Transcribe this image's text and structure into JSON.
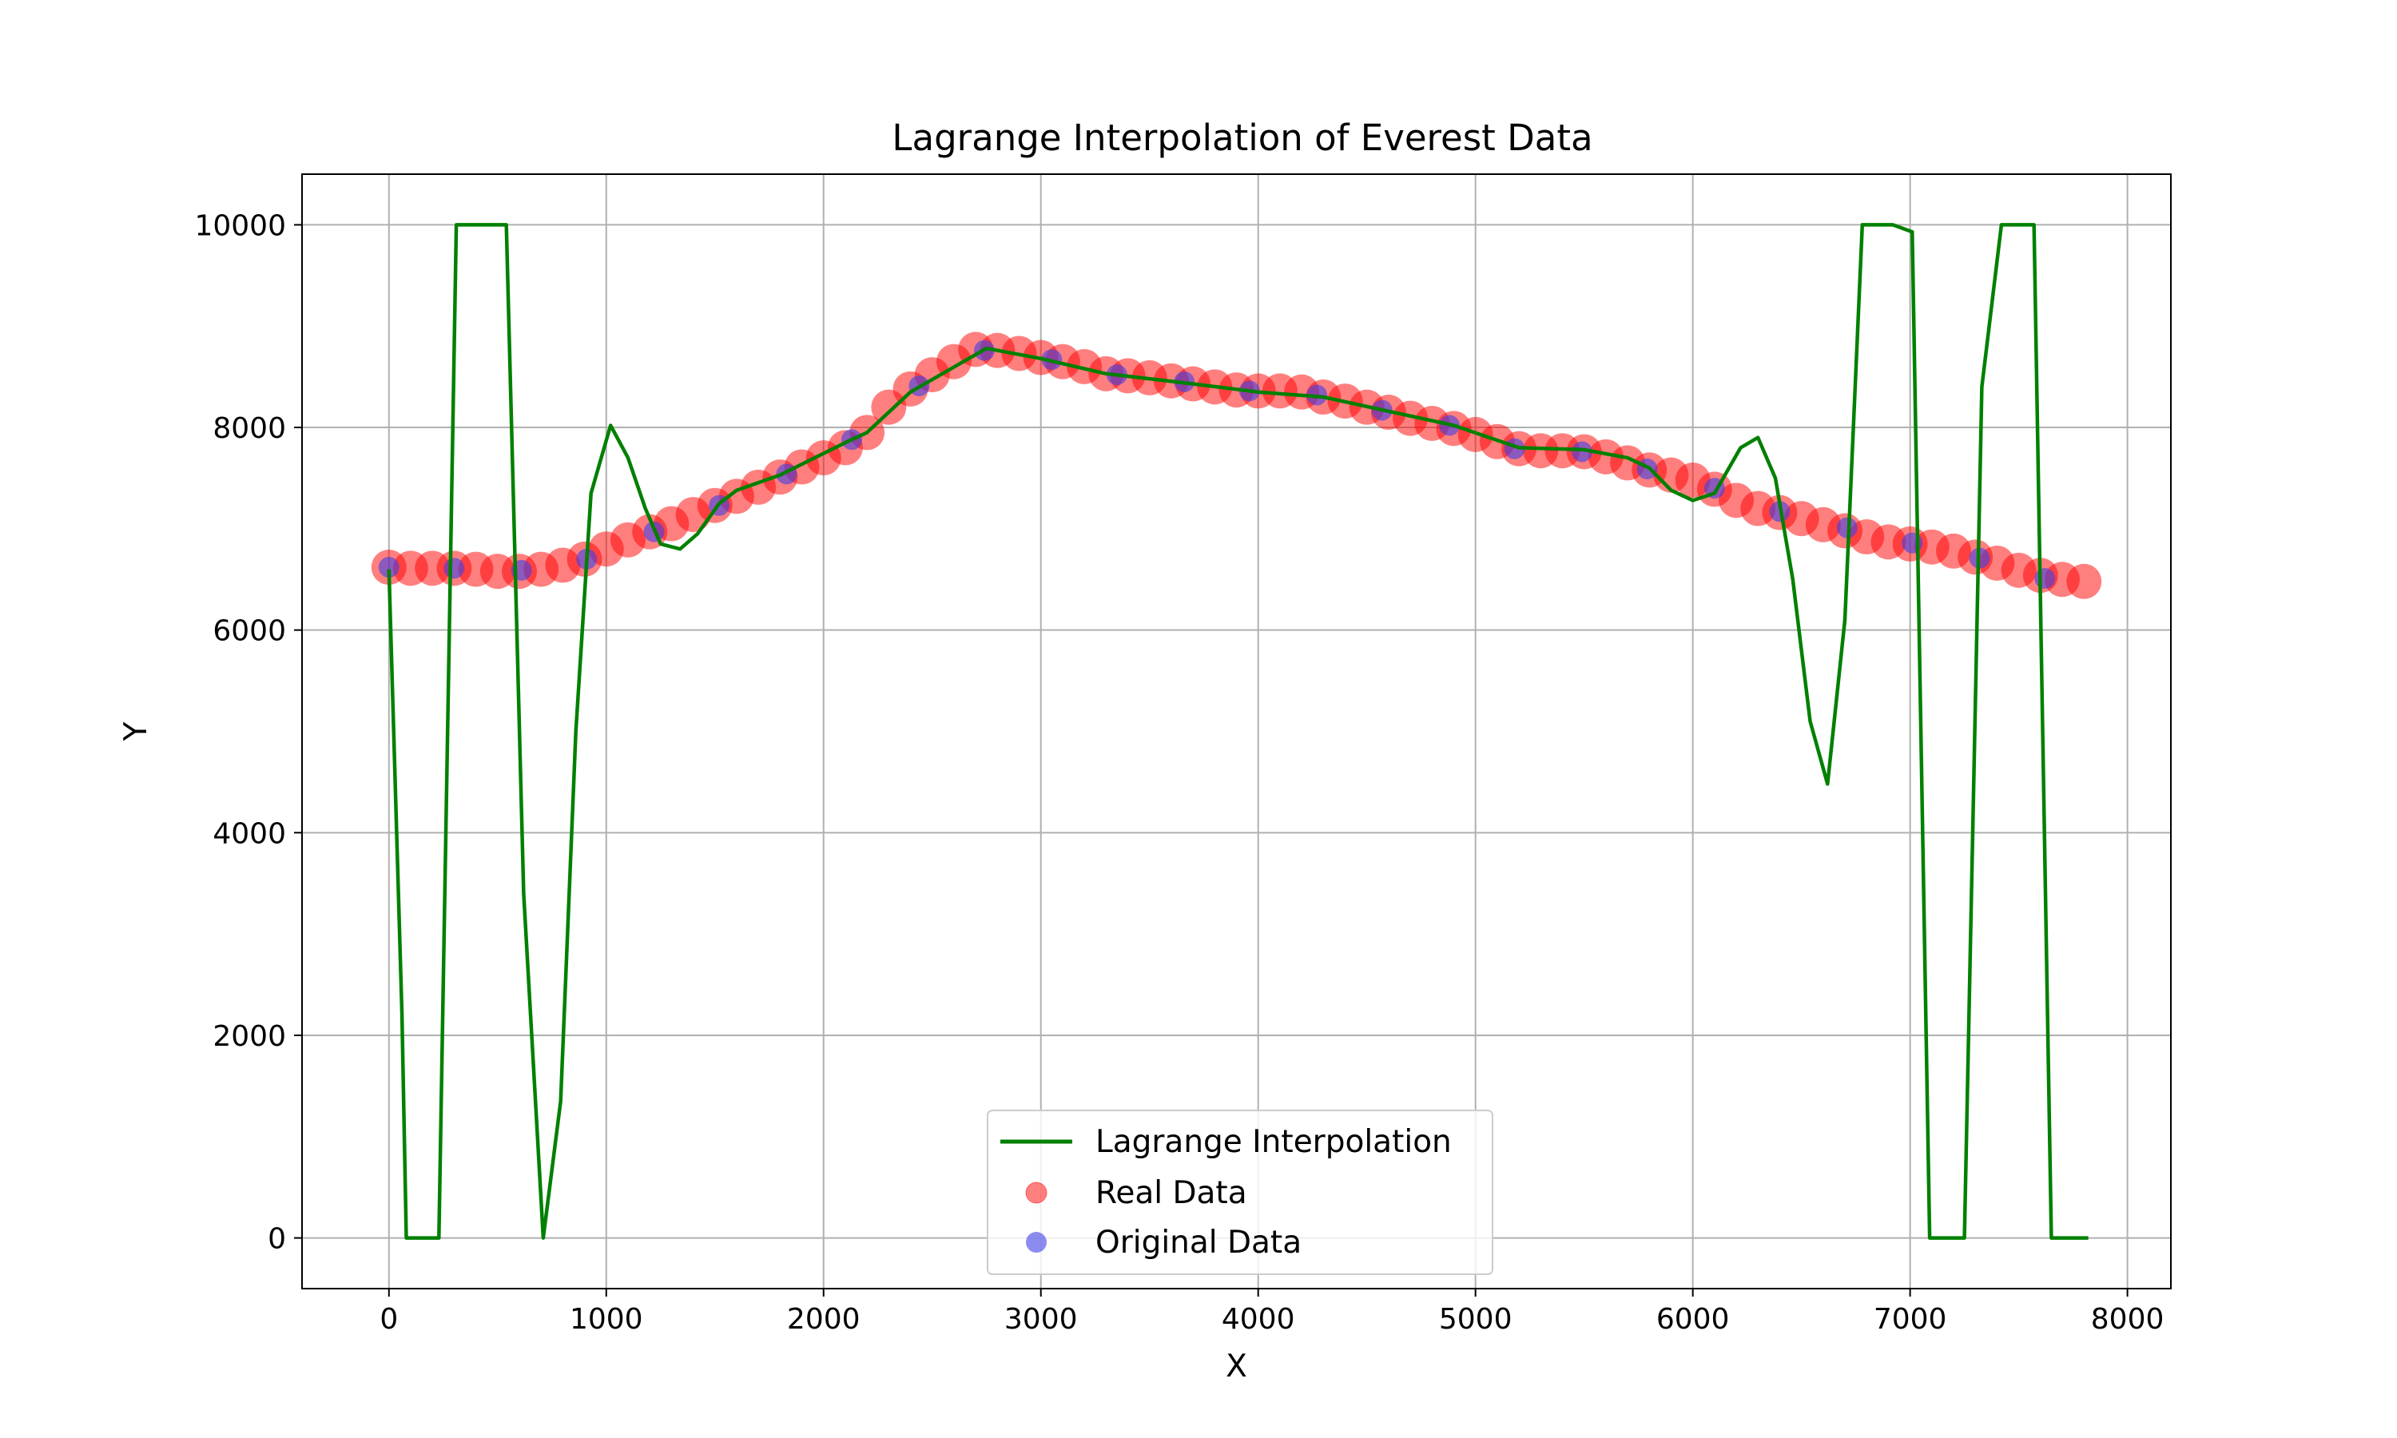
{
  "chart_data": {
    "type": "line",
    "title": "Lagrange Interpolation of Everest Data",
    "xlabel": "X",
    "ylabel": "Y",
    "xlim": [
      -400,
      8200
    ],
    "ylim": [
      -500,
      10500
    ],
    "xticks": [
      0,
      1000,
      2000,
      3000,
      4000,
      5000,
      6000,
      7000,
      8000
    ],
    "yticks": [
      0,
      2000,
      4000,
      6000,
      8000,
      10000
    ],
    "grid": true,
    "legend_position": "lower center",
    "colors": {
      "lagrange": "#008000",
      "real": "#ff0000",
      "original": "#3f3fe6"
    },
    "series": [
      {
        "name": "Lagrange Interpolation",
        "kind": "line",
        "points": [
          [
            0,
            6600
          ],
          [
            60,
            2200
          ],
          [
            80,
            0
          ],
          [
            230,
            0
          ],
          [
            310,
            10000
          ],
          [
            540,
            10000
          ],
          [
            620,
            3400
          ],
          [
            710,
            0
          ],
          [
            790,
            1350
          ],
          [
            860,
            5000
          ],
          [
            930,
            7350
          ],
          [
            1020,
            8020
          ],
          [
            1100,
            7700
          ],
          [
            1180,
            7200
          ],
          [
            1250,
            6850
          ],
          [
            1340,
            6800
          ],
          [
            1420,
            6950
          ],
          [
            1520,
            7250
          ],
          [
            1600,
            7380
          ],
          [
            1800,
            7530
          ],
          [
            2100,
            7850
          ],
          [
            2200,
            7950
          ],
          [
            2400,
            8350
          ],
          [
            2750,
            8780
          ],
          [
            3000,
            8680
          ],
          [
            3300,
            8530
          ],
          [
            3700,
            8430
          ],
          [
            4000,
            8350
          ],
          [
            4300,
            8300
          ],
          [
            4600,
            8160
          ],
          [
            4900,
            8020
          ],
          [
            5200,
            7800
          ],
          [
            5500,
            7780
          ],
          [
            5700,
            7700
          ],
          [
            5800,
            7600
          ],
          [
            5900,
            7380
          ],
          [
            6000,
            7280
          ],
          [
            6100,
            7350
          ],
          [
            6220,
            7800
          ],
          [
            6300,
            7900
          ],
          [
            6380,
            7500
          ],
          [
            6460,
            6500
          ],
          [
            6540,
            5100
          ],
          [
            6620,
            4480
          ],
          [
            6700,
            6100
          ],
          [
            6780,
            10000
          ],
          [
            6920,
            10000
          ],
          [
            7010,
            9930
          ],
          [
            7090,
            0
          ],
          [
            7250,
            0
          ],
          [
            7330,
            8400
          ],
          [
            7420,
            10000
          ],
          [
            7570,
            10000
          ],
          [
            7650,
            0
          ],
          [
            7820,
            0
          ]
        ]
      },
      {
        "name": "Real Data",
        "kind": "scatter",
        "points": [
          [
            0,
            6620
          ],
          [
            100,
            6610
          ],
          [
            200,
            6610
          ],
          [
            300,
            6610
          ],
          [
            400,
            6600
          ],
          [
            500,
            6580
          ],
          [
            600,
            6580
          ],
          [
            700,
            6600
          ],
          [
            800,
            6640
          ],
          [
            900,
            6700
          ],
          [
            1000,
            6800
          ],
          [
            1100,
            6890
          ],
          [
            1200,
            6970
          ],
          [
            1300,
            7050
          ],
          [
            1400,
            7140
          ],
          [
            1500,
            7230
          ],
          [
            1600,
            7320
          ],
          [
            1700,
            7410
          ],
          [
            1800,
            7510
          ],
          [
            1900,
            7610
          ],
          [
            2000,
            7700
          ],
          [
            2100,
            7800
          ],
          [
            2200,
            7950
          ],
          [
            2300,
            8200
          ],
          [
            2400,
            8380
          ],
          [
            2500,
            8520
          ],
          [
            2600,
            8650
          ],
          [
            2700,
            8770
          ],
          [
            2800,
            8760
          ],
          [
            2900,
            8730
          ],
          [
            3000,
            8690
          ],
          [
            3100,
            8650
          ],
          [
            3200,
            8600
          ],
          [
            3300,
            8530
          ],
          [
            3400,
            8510
          ],
          [
            3500,
            8490
          ],
          [
            3600,
            8460
          ],
          [
            3700,
            8430
          ],
          [
            3800,
            8400
          ],
          [
            3900,
            8370
          ],
          [
            4000,
            8360
          ],
          [
            4100,
            8360
          ],
          [
            4200,
            8350
          ],
          [
            4300,
            8300
          ],
          [
            4400,
            8260
          ],
          [
            4500,
            8200
          ],
          [
            4600,
            8150
          ],
          [
            4700,
            8090
          ],
          [
            4800,
            8040
          ],
          [
            4900,
            7990
          ],
          [
            5000,
            7930
          ],
          [
            5100,
            7860
          ],
          [
            5200,
            7790
          ],
          [
            5300,
            7770
          ],
          [
            5400,
            7770
          ],
          [
            5500,
            7760
          ],
          [
            5600,
            7710
          ],
          [
            5700,
            7650
          ],
          [
            5800,
            7580
          ],
          [
            5900,
            7530
          ],
          [
            6000,
            7480
          ],
          [
            6100,
            7390
          ],
          [
            6200,
            7280
          ],
          [
            6300,
            7200
          ],
          [
            6400,
            7160
          ],
          [
            6500,
            7100
          ],
          [
            6600,
            7040
          ],
          [
            6700,
            6980
          ],
          [
            6800,
            6920
          ],
          [
            6900,
            6870
          ],
          [
            7000,
            6850
          ],
          [
            7100,
            6820
          ],
          [
            7200,
            6780
          ],
          [
            7300,
            6720
          ],
          [
            7400,
            6660
          ],
          [
            7500,
            6590
          ],
          [
            7600,
            6540
          ],
          [
            7700,
            6500
          ],
          [
            7800,
            6480
          ]
        ]
      },
      {
        "name": "Original Data",
        "kind": "scatter",
        "points": [
          [
            0,
            6620
          ],
          [
            300,
            6610
          ],
          [
            610,
            6590
          ],
          [
            910,
            6700
          ],
          [
            1220,
            6970
          ],
          [
            1520,
            7230
          ],
          [
            1830,
            7540
          ],
          [
            2130,
            7880
          ],
          [
            2440,
            8410
          ],
          [
            2740,
            8760
          ],
          [
            3050,
            8670
          ],
          [
            3350,
            8520
          ],
          [
            3660,
            8450
          ],
          [
            3960,
            8360
          ],
          [
            4270,
            8320
          ],
          [
            4570,
            8170
          ],
          [
            4880,
            8020
          ],
          [
            5180,
            7790
          ],
          [
            5490,
            7760
          ],
          [
            5790,
            7590
          ],
          [
            6100,
            7400
          ],
          [
            6400,
            7170
          ],
          [
            6710,
            7010
          ],
          [
            7010,
            6860
          ],
          [
            7320,
            6710
          ],
          [
            7620,
            6510
          ]
        ]
      }
    ]
  }
}
